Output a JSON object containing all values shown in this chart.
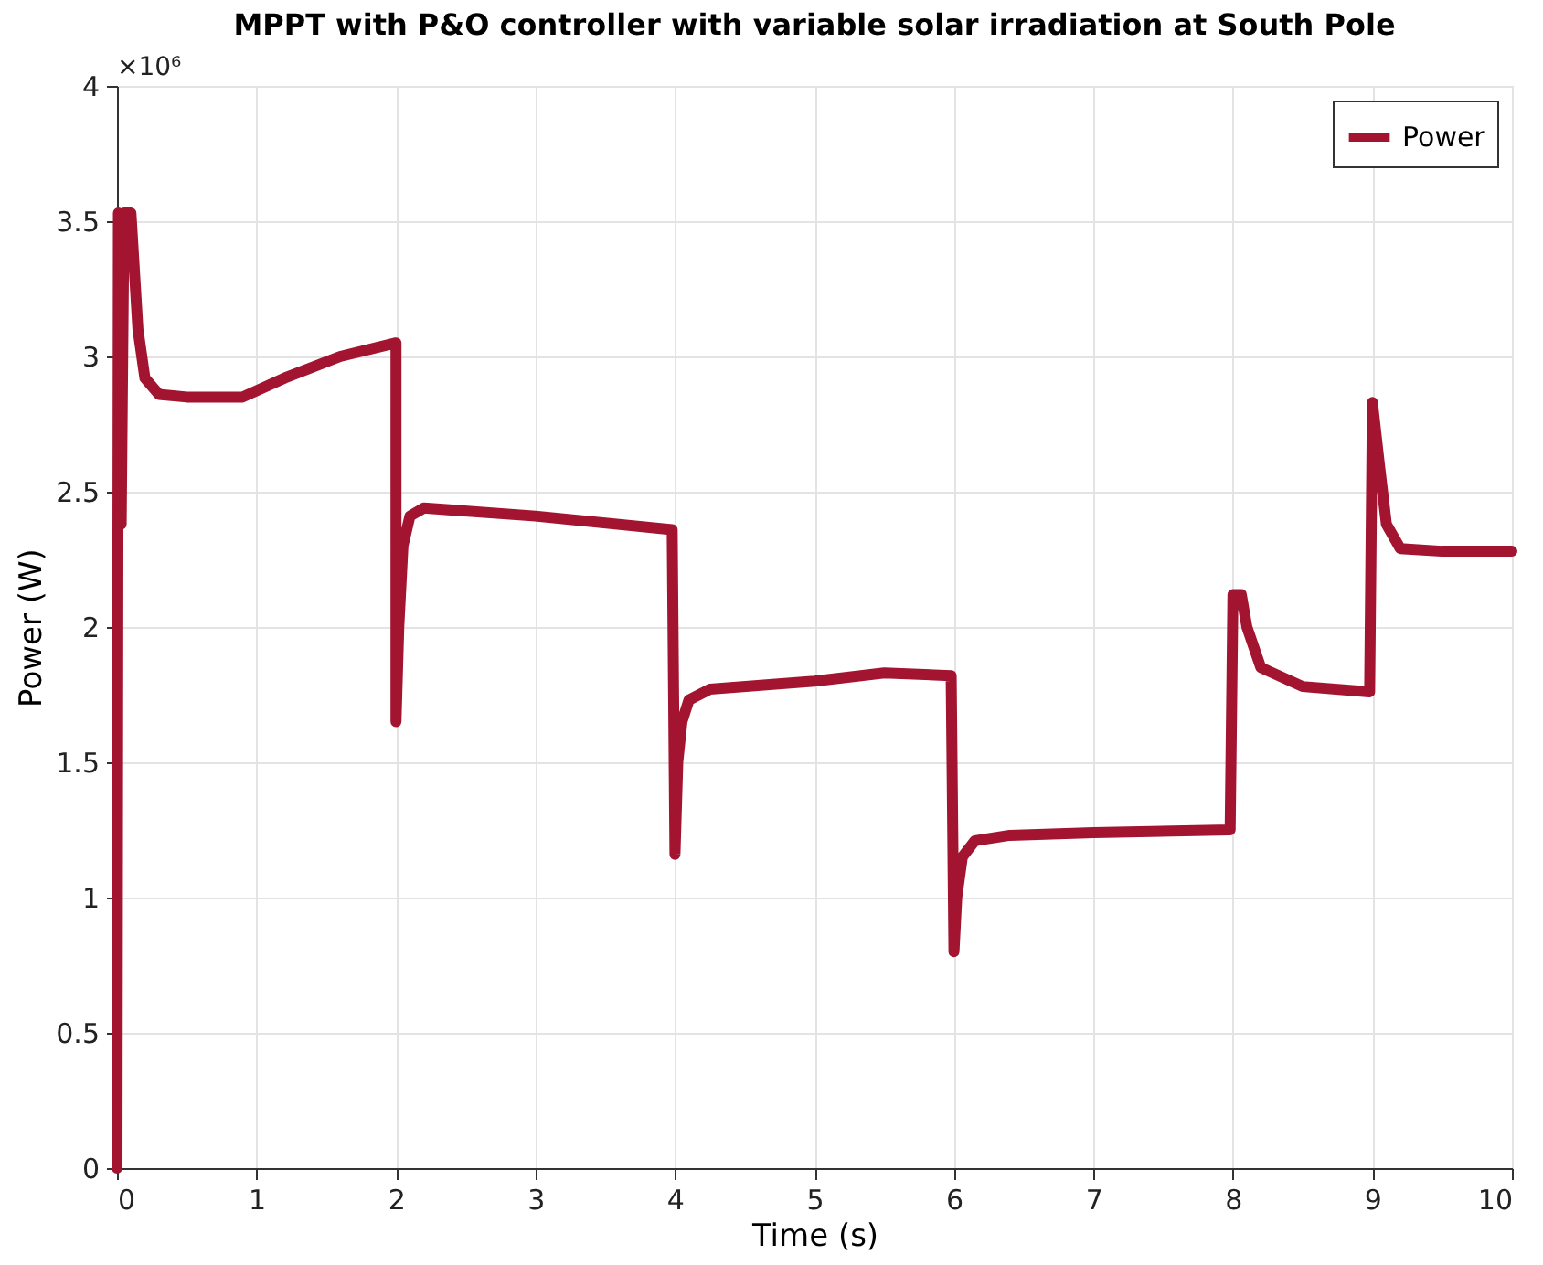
{
  "chart_data": {
    "type": "line",
    "title": "MPPT with P&O controller with variable solar irradiation at South Pole",
    "xlabel": "Time (s)",
    "ylabel": "Power (W)",
    "annotations": [
      "×10⁶"
    ],
    "xlim": [
      0,
      10
    ],
    "xticks": [
      0,
      1,
      2,
      3,
      4,
      5,
      6,
      7,
      8,
      9,
      10
    ],
    "ylim": [
      0,
      4
    ],
    "yticks": [
      0,
      0.5,
      1,
      1.5,
      2,
      2.5,
      3,
      3.5,
      4
    ],
    "grid": true,
    "legend": "top right",
    "line_style": "solid",
    "marker": "none",
    "series": [
      {
        "name": "Power",
        "color": "#a2142f",
        "x": [
          0,
          0.01,
          0.03,
          0.05,
          0.1,
          0.15,
          0.2,
          0.3,
          0.5,
          0.9,
          1.2,
          1.6,
          2.0,
          2.0,
          2.02,
          2.05,
          2.1,
          2.2,
          3.0,
          3.98,
          4.0,
          4.02,
          4.05,
          4.1,
          4.25,
          5.0,
          5.5,
          5.98,
          6.0,
          6.02,
          6.06,
          6.15,
          6.4,
          7.0,
          7.98,
          8.0,
          8.06,
          8.1,
          8.2,
          8.5,
          8.98,
          9.0,
          9.05,
          9.1,
          9.2,
          9.5,
          10
        ],
        "values": [
          0,
          3.53,
          2.38,
          3.53,
          3.53,
          3.1,
          2.92,
          2.86,
          2.85,
          2.85,
          2.92,
          3.0,
          3.05,
          1.65,
          2.0,
          2.3,
          2.41,
          2.44,
          2.41,
          2.36,
          1.16,
          1.5,
          1.65,
          1.73,
          1.77,
          1.8,
          1.83,
          1.82,
          0.8,
          1.0,
          1.15,
          1.21,
          1.23,
          1.24,
          1.25,
          2.12,
          2.12,
          2.0,
          1.85,
          1.78,
          1.76,
          2.83,
          2.6,
          2.38,
          2.29,
          2.28,
          2.28
        ]
      }
    ]
  }
}
